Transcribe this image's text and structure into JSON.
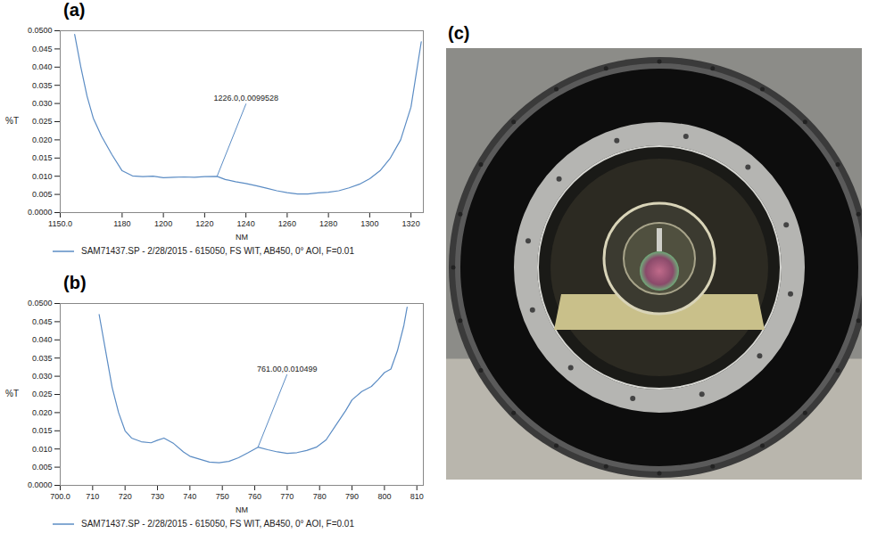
{
  "chart_data": [
    {
      "type": "line",
      "title": "(a)",
      "xlabel": "NM",
      "ylabel": "%T",
      "x": [
        1157,
        1160,
        1163,
        1166,
        1170,
        1175,
        1180,
        1185,
        1190,
        1195,
        1200,
        1205,
        1210,
        1215,
        1220,
        1226,
        1230,
        1235,
        1240,
        1245,
        1250,
        1255,
        1260,
        1265,
        1270,
        1275,
        1280,
        1285,
        1290,
        1295,
        1300,
        1305,
        1310,
        1315,
        1320,
        1325
      ],
      "series": [
        {
          "name": "SAM71437.SP - 2/28/2015 - 615050, FS WIT, AB450, 0° AOI, F=0.01",
          "color": "#5b8cc4",
          "values": [
            0.049,
            0.04,
            0.032,
            0.026,
            0.021,
            0.016,
            0.0115,
            0.0101,
            0.0099,
            0.01,
            0.0096,
            0.0097,
            0.0098,
            0.0097,
            0.0099,
            0.0099528,
            0.0091,
            0.0085,
            0.008,
            0.0074,
            0.0067,
            0.006,
            0.0055,
            0.0051,
            0.0051,
            0.0054,
            0.0056,
            0.006,
            0.0068,
            0.0078,
            0.0093,
            0.0115,
            0.015,
            0.02,
            0.029,
            0.047
          ]
        }
      ],
      "xlim": [
        1150,
        1326
      ],
      "xticks": [
        {
          "value": 1150,
          "label": "1150.0"
        },
        1180,
        1200,
        1220,
        1240,
        1260,
        1280,
        1300,
        1320
      ],
      "ylim": [
        0,
        0.05
      ],
      "yticks": [
        {
          "value": 0,
          "label": "0.0000"
        },
        0.005,
        {
          "value": 0.01,
          "label": "0.010"
        },
        0.015,
        {
          "value": 0.02,
          "label": "0.020"
        },
        0.025,
        {
          "value": 0.03,
          "label": "0.030"
        },
        0.035,
        {
          "value": 0.04,
          "label": "0.040"
        },
        0.045,
        {
          "value": 0.05,
          "label": "0.0500"
        }
      ],
      "grid": false,
      "legend": "bottom",
      "annotations": [
        {
          "text": "1226.0,0.0099528",
          "x": 1226.0,
          "y": 0.0099528
        }
      ]
    },
    {
      "type": "line",
      "title": "(b)",
      "xlabel": "NM",
      "ylabel": "%T",
      "x": [
        712,
        714,
        716,
        718,
        720,
        722,
        725,
        728,
        730,
        732,
        735,
        738,
        740,
        743,
        746,
        749,
        752,
        755,
        758,
        761,
        764,
        767,
        770,
        773,
        776,
        779,
        782,
        785,
        788,
        790,
        793,
        796,
        798,
        800,
        802,
        804,
        806,
        807
      ],
      "series": [
        {
          "name": "SAM71437.SP - 2/28/2015 - 615050, FS WIT, AB450, 0° AOI, F=0.01",
          "color": "#5b8cc4",
          "values": [
            0.047,
            0.037,
            0.027,
            0.02,
            0.015,
            0.013,
            0.012,
            0.0117,
            0.0124,
            0.013,
            0.0115,
            0.0092,
            0.008,
            0.0072,
            0.0064,
            0.0062,
            0.0066,
            0.0076,
            0.009,
            0.010499,
            0.0098,
            0.0092,
            0.0088,
            0.009,
            0.0096,
            0.0105,
            0.0125,
            0.0165,
            0.0205,
            0.0235,
            0.0258,
            0.0272,
            0.029,
            0.031,
            0.032,
            0.037,
            0.044,
            0.049
          ]
        }
      ],
      "xlim": [
        700,
        812
      ],
      "xticks": [
        {
          "value": 700,
          "label": "700.0"
        },
        710,
        720,
        730,
        740,
        750,
        760,
        770,
        780,
        790,
        800,
        810
      ],
      "ylim": [
        0,
        0.05
      ],
      "yticks": [
        {
          "value": 0,
          "label": "0.0000"
        },
        0.005,
        {
          "value": 0.01,
          "label": "0.010"
        },
        0.015,
        {
          "value": 0.02,
          "label": "0.020"
        },
        0.025,
        {
          "value": 0.03,
          "label": "0.030"
        },
        0.035,
        {
          "value": 0.04,
          "label": "0.040"
        },
        0.045,
        {
          "value": 0.05,
          "label": "0.0500"
        }
      ],
      "grid": false,
      "legend": "bottom",
      "annotations": [
        {
          "text": "761.00,0.010499",
          "x": 761.0,
          "y": 0.010499
        }
      ]
    }
  ],
  "photo": {
    "label": "(c)"
  }
}
